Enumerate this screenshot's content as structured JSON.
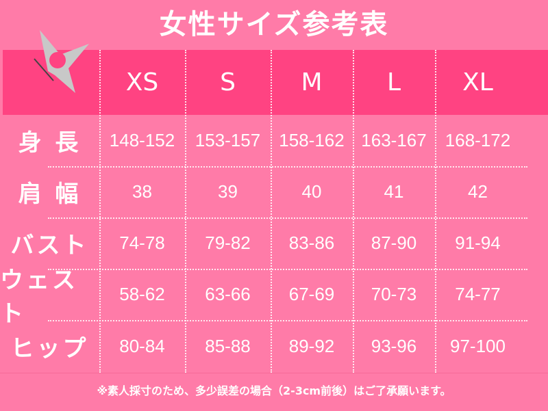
{
  "title": "女性サイズ参考表",
  "colors": {
    "background": "#ff7ba8",
    "header": "#ff4382",
    "text": "#ffffff",
    "logo": "#c8c8c8"
  },
  "logo_icon": "shuriken-icon",
  "sizes": [
    "XS",
    "S",
    "M",
    "L",
    "XL"
  ],
  "rows": [
    {
      "label": "身 長",
      "values": [
        "148-152",
        "153-157",
        "158-162",
        "163-167",
        "168-172"
      ]
    },
    {
      "label": "肩 幅",
      "values": [
        "38",
        "39",
        "40",
        "41",
        "42"
      ]
    },
    {
      "label": "バスト",
      "values": [
        "74-78",
        "79-82",
        "83-86",
        "87-90",
        "91-94"
      ]
    },
    {
      "label": "ウェスト",
      "values": [
        "58-62",
        "63-66",
        "67-69",
        "70-73",
        "74-77"
      ]
    },
    {
      "label": "ヒップ",
      "values": [
        "80-84",
        "85-88",
        "89-92",
        "93-96",
        "97-100"
      ]
    }
  ],
  "footnote": "※素人採寸のため、多少誤差の場合（2-3cm前後）はご了承願います。"
}
